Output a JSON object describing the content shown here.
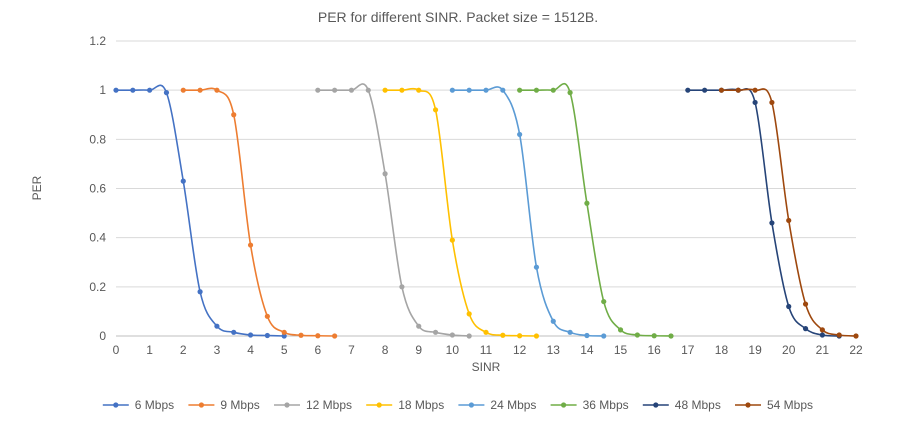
{
  "chart_data": {
    "type": "line",
    "title": "PER for different SINR. Packet size = 1512B.",
    "xlabel": "SINR",
    "ylabel": "PER",
    "xlim": [
      0,
      22
    ],
    "ylim": [
      0,
      1.2
    ],
    "x_ticks": [
      0,
      1,
      2,
      3,
      4,
      5,
      6,
      7,
      8,
      9,
      10,
      11,
      12,
      13,
      14,
      15,
      16,
      17,
      18,
      19,
      20,
      21,
      22
    ],
    "y_ticks": [
      0,
      0.2,
      0.4,
      0.6,
      0.8,
      1,
      1.2
    ],
    "y_tick_labels": [
      "0",
      "0.2",
      "0.4",
      "0.6",
      "0.8",
      "1",
      "1.2"
    ],
    "grid": "horizontal",
    "legend_position": "bottom",
    "series": [
      {
        "name": "6 Mbps",
        "color": "#4472C4",
        "x": [
          0,
          0.5,
          1,
          1.5,
          2,
          2.5,
          3,
          3.5,
          4,
          4.5,
          5
        ],
        "y": [
          1,
          1,
          1,
          0.99,
          0.63,
          0.18,
          0.04,
          0.015,
          0.004,
          0.002,
          0
        ]
      },
      {
        "name": "9 Mbps",
        "color": "#ED7D31",
        "x": [
          2,
          2.5,
          3,
          3.5,
          4,
          4.5,
          5,
          5.5,
          6,
          6.5
        ],
        "y": [
          1,
          1,
          1,
          0.9,
          0.37,
          0.08,
          0.015,
          0.003,
          0.001,
          0
        ]
      },
      {
        "name": "12 Mbps",
        "color": "#A5A5A5",
        "x": [
          6,
          6.5,
          7,
          7.5,
          8,
          8.5,
          9,
          9.5,
          10,
          10.5
        ],
        "y": [
          1,
          1,
          1,
          1,
          0.66,
          0.2,
          0.04,
          0.015,
          0.004,
          0
        ]
      },
      {
        "name": "18 Mbps",
        "color": "#FFC000",
        "x": [
          8,
          8.5,
          9,
          9.5,
          10,
          10.5,
          11,
          11.5,
          12,
          12.5
        ],
        "y": [
          1,
          1,
          1,
          0.92,
          0.39,
          0.09,
          0.015,
          0.003,
          0.001,
          0
        ]
      },
      {
        "name": "24 Mbps",
        "color": "#5B9BD5",
        "x": [
          10,
          10.5,
          11,
          11.5,
          12,
          12.5,
          13,
          13.5,
          14,
          14.5
        ],
        "y": [
          1,
          1,
          1,
          1,
          0.82,
          0.28,
          0.06,
          0.015,
          0.002,
          0
        ]
      },
      {
        "name": "36 Mbps",
        "color": "#70AD47",
        "x": [
          12,
          12.5,
          13,
          13.5,
          14,
          14.5,
          15,
          15.5,
          16,
          16.5
        ],
        "y": [
          1,
          1,
          1,
          0.99,
          0.54,
          0.14,
          0.025,
          0.004,
          0.001,
          0
        ]
      },
      {
        "name": "48 Mbps",
        "color": "#264478",
        "x": [
          17,
          17.5,
          18,
          18.5,
          19,
          19.5,
          20,
          20.5,
          21,
          21.5
        ],
        "y": [
          1,
          1,
          1,
          1,
          0.95,
          0.46,
          0.12,
          0.03,
          0.004,
          0
        ]
      },
      {
        "name": "54 Mbps",
        "color": "#9E480E",
        "x": [
          18,
          18.5,
          19,
          19.5,
          20,
          20.5,
          21,
          21.5,
          22
        ],
        "y": [
          1,
          1,
          1,
          0.95,
          0.47,
          0.13,
          0.025,
          0.004,
          0
        ]
      }
    ]
  }
}
